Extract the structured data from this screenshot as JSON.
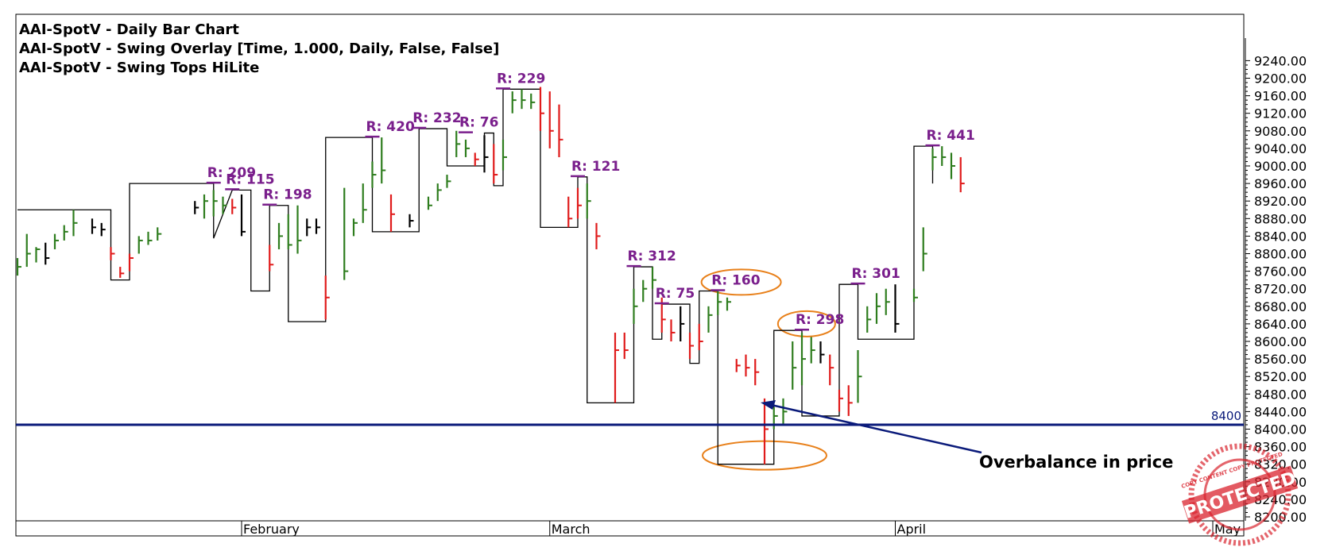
{
  "headers": {
    "line1": "AAI-SpotV - Daily Bar Chart",
    "line2": "AAI-SpotV - Swing Overlay [Time, 1.000, Daily, False, False]",
    "line3": "AAI-SpotV - Swing Tops HiLite"
  },
  "annotation": {
    "text": "Overbalance in price"
  },
  "watermark": {
    "text": "PROTECTED",
    "ring_text": "COPY CONTENT COPY PROTECTED"
  },
  "colors": {
    "up": "#2e7d1e",
    "down": "#e01b1b",
    "neutral": "#000000",
    "swing_label": "#7a1f8c",
    "level_line": "#0a1a7a",
    "ellipse": "#e8801a",
    "watermark": "#d9232d"
  },
  "chart_data": {
    "type": "bar",
    "title": "AAI-SpotV - Daily Bar Chart",
    "y_axis": {
      "min": 8200,
      "max": 9240,
      "step": 40,
      "ticks": [
        "8200.00",
        "8240.00",
        "8280.00",
        "8320.00",
        "8360.00",
        "8400.00",
        "8440.00",
        "8480.00",
        "8520.00",
        "8560.00",
        "8600.00",
        "8640.00",
        "8680.00",
        "8720.00",
        "8760.00",
        "8800.00",
        "8840.00",
        "8880.00",
        "8920.00",
        "8960.00",
        "9000.00",
        "9040.00",
        "9080.00",
        "9120.00",
        "9160.00",
        "9200.00",
        "9240.00"
      ]
    },
    "x_axis": {
      "months": [
        {
          "label": "February",
          "bar": 24
        },
        {
          "label": "March",
          "bar": 57
        },
        {
          "label": "April",
          "bar": 94
        },
        {
          "label": "May",
          "bar": 128
        }
      ],
      "bars_total": 130
    },
    "level_line": {
      "value": 8410,
      "label": "8400"
    },
    "swing_path": [
      [
        0,
        8900
      ],
      [
        10,
        8900
      ],
      [
        10,
        8740
      ],
      [
        12,
        8740
      ],
      [
        12,
        8960
      ],
      [
        21,
        8960
      ],
      [
        21,
        8835
      ],
      [
        23,
        8945
      ],
      [
        25,
        8945
      ],
      [
        25,
        8715
      ],
      [
        27,
        8715
      ],
      [
        27,
        8910
      ],
      [
        29,
        8910
      ],
      [
        29,
        8645
      ],
      [
        33,
        8645
      ],
      [
        33,
        9065
      ],
      [
        38,
        9065
      ],
      [
        38,
        8850
      ],
      [
        43,
        8850
      ],
      [
        43,
        9085
      ],
      [
        46,
        9085
      ],
      [
        46,
        9000
      ],
      [
        50,
        9000
      ],
      [
        50,
        9075
      ],
      [
        51,
        9075
      ],
      [
        51,
        8955
      ],
      [
        52,
        8955
      ],
      [
        52,
        9175
      ],
      [
        56,
        9175
      ],
      [
        56,
        8860
      ],
      [
        60,
        8860
      ],
      [
        60,
        8975
      ],
      [
        61,
        8975
      ],
      [
        61,
        8460
      ],
      [
        66,
        8460
      ],
      [
        66,
        8770
      ],
      [
        68,
        8770
      ],
      [
        68,
        8605
      ],
      [
        69,
        8605
      ],
      [
        69,
        8685
      ],
      [
        72,
        8685
      ],
      [
        72,
        8550
      ],
      [
        73,
        8550
      ],
      [
        73,
        8715
      ],
      [
        75,
        8715
      ],
      [
        75,
        8320
      ],
      [
        81,
        8320
      ],
      [
        81,
        8625
      ],
      [
        84,
        8625
      ],
      [
        84,
        8430
      ],
      [
        88,
        8430
      ],
      [
        88,
        8730
      ],
      [
        90,
        8730
      ],
      [
        90,
        8605
      ],
      [
        96,
        8605
      ],
      [
        96,
        9045
      ],
      [
        98,
        9045
      ],
      [
        98,
        8960
      ]
    ],
    "swing_labels": [
      {
        "x": 21,
        "y": 8960,
        "label": "R: 209"
      },
      {
        "x": 23,
        "y": 8945,
        "label": "R: 115"
      },
      {
        "x": 27,
        "y": 8910,
        "label": "R: 198"
      },
      {
        "x": 38,
        "y": 9065,
        "label": "R: 420"
      },
      {
        "x": 43,
        "y": 9085,
        "label": "R: 232"
      },
      {
        "x": 48,
        "y": 9075,
        "label": "R: 76"
      },
      {
        "x": 52,
        "y": 9175,
        "label": "R: 229"
      },
      {
        "x": 60,
        "y": 8975,
        "label": "R: 121"
      },
      {
        "x": 66,
        "y": 8770,
        "label": "R: 312"
      },
      {
        "x": 69,
        "y": 8685,
        "label": "R: 75"
      },
      {
        "x": 75,
        "y": 8715,
        "label": "R: 160"
      },
      {
        "x": 84,
        "y": 8625,
        "label": "R: 298"
      },
      {
        "x": 90,
        "y": 8730,
        "label": "R: 301"
      },
      {
        "x": 98,
        "y": 9045,
        "label": "R: 441"
      }
    ],
    "ellipses": [
      {
        "x": 77.5,
        "y": 8735
      },
      {
        "x": 84.5,
        "y": 8640
      },
      {
        "x": 80,
        "y": 8340
      }
    ],
    "bars": [
      [
        0,
        8790,
        8750,
        8770,
        "u"
      ],
      [
        1,
        8845,
        8770,
        8800,
        "u"
      ],
      [
        2,
        8815,
        8780,
        8810,
        "u"
      ],
      [
        3,
        8825,
        8775,
        8790,
        "n"
      ],
      [
        4,
        8845,
        8810,
        8830,
        "u"
      ],
      [
        5,
        8865,
        8830,
        8850,
        "u"
      ],
      [
        6,
        8900,
        8840,
        8870,
        "u"
      ],
      [
        8,
        8880,
        8845,
        8860,
        "n"
      ],
      [
        9,
        8870,
        8840,
        8855,
        "n"
      ],
      [
        10,
        8815,
        8785,
        8800,
        "d"
      ],
      [
        11,
        8770,
        8745,
        8755,
        "d"
      ],
      [
        12,
        8800,
        8760,
        8790,
        "d"
      ],
      [
        13,
        8840,
        8800,
        8830,
        "u"
      ],
      [
        14,
        8850,
        8820,
        8830,
        "u"
      ],
      [
        15,
        8860,
        8830,
        8845,
        "u"
      ],
      [
        19,
        8920,
        8890,
        8905,
        "n"
      ],
      [
        20,
        8935,
        8880,
        8920,
        "u"
      ],
      [
        21,
        8945,
        8885,
        8920,
        "u"
      ],
      [
        22,
        8930,
        8890,
        8910,
        "u"
      ],
      [
        23,
        8925,
        8890,
        8905,
        "d"
      ],
      [
        24,
        8935,
        8840,
        8850,
        "n"
      ],
      [
        27,
        8820,
        8760,
        8775,
        "d"
      ],
      [
        28,
        8870,
        8810,
        8840,
        "u"
      ],
      [
        29,
        8890,
        8810,
        8820,
        "u"
      ],
      [
        30,
        8910,
        8800,
        8830,
        "u"
      ],
      [
        31,
        8880,
        8840,
        8860,
        "n"
      ],
      [
        32,
        8880,
        8845,
        8860,
        "n"
      ],
      [
        33,
        8750,
        8650,
        8700,
        "d"
      ],
      [
        35,
        8950,
        8740,
        8760,
        "u"
      ],
      [
        36,
        8880,
        8840,
        8870,
        "u"
      ],
      [
        37,
        8960,
        8870,
        8900,
        "u"
      ],
      [
        38,
        9010,
        8950,
        8980,
        "u"
      ],
      [
        39,
        9065,
        8960,
        8990,
        "u"
      ],
      [
        40,
        8935,
        8850,
        8890,
        "d"
      ],
      [
        42,
        8890,
        8860,
        8875,
        "n"
      ],
      [
        44,
        8930,
        8900,
        8910,
        "u"
      ],
      [
        45,
        8960,
        8920,
        8945,
        "u"
      ],
      [
        46,
        8980,
        8950,
        8965,
        "u"
      ],
      [
        47,
        9080,
        9020,
        9050,
        "u"
      ],
      [
        48,
        9060,
        9020,
        9040,
        "u"
      ],
      [
        49,
        9030,
        9000,
        9015,
        "d"
      ],
      [
        50,
        9070,
        8985,
        9020,
        "n"
      ],
      [
        51,
        9050,
        8960,
        8980,
        "d"
      ],
      [
        52,
        9060,
        8990,
        9020,
        "u"
      ],
      [
        53,
        9170,
        9120,
        9150,
        "u"
      ],
      [
        54,
        9175,
        9130,
        9150,
        "u"
      ],
      [
        55,
        9165,
        9130,
        9145,
        "u"
      ],
      [
        56,
        9180,
        9080,
        9120,
        "d"
      ],
      [
        57,
        9170,
        9040,
        9080,
        "d"
      ],
      [
        58,
        9140,
        9020,
        9060,
        "d"
      ],
      [
        59,
        8930,
        8860,
        8880,
        "d"
      ],
      [
        60,
        8950,
        8880,
        8910,
        "d"
      ],
      [
        61,
        8960,
        8880,
        8920,
        "u"
      ],
      [
        62,
        8870,
        8810,
        8840,
        "d"
      ],
      [
        64,
        8620,
        8460,
        8580,
        "d"
      ],
      [
        65,
        8620,
        8560,
        8580,
        "d"
      ],
      [
        66,
        8720,
        8640,
        8680,
        "u"
      ],
      [
        67,
        8740,
        8690,
        8720,
        "u"
      ],
      [
        68,
        8770,
        8720,
        8740,
        "u"
      ],
      [
        69,
        8700,
        8620,
        8650,
        "d"
      ],
      [
        70,
        8650,
        8600,
        8620,
        "d"
      ],
      [
        71,
        8680,
        8600,
        8640,
        "n"
      ],
      [
        72,
        8620,
        8560,
        8590,
        "d"
      ],
      [
        73,
        8640,
        8580,
        8600,
        "d"
      ],
      [
        74,
        8680,
        8620,
        8660,
        "u"
      ],
      [
        75,
        8715,
        8660,
        8690,
        "u"
      ],
      [
        76,
        8700,
        8670,
        8690,
        "u"
      ],
      [
        77,
        8560,
        8530,
        8545,
        "d"
      ],
      [
        78,
        8570,
        8520,
        8540,
        "d"
      ],
      [
        79,
        8560,
        8500,
        8530,
        "d"
      ],
      [
        80,
        8470,
        8320,
        8400,
        "d"
      ],
      [
        81,
        8450,
        8400,
        8430,
        "u"
      ],
      [
        82,
        8470,
        8410,
        8440,
        "u"
      ],
      [
        83,
        8600,
        8490,
        8540,
        "u"
      ],
      [
        84,
        8620,
        8500,
        8560,
        "u"
      ],
      [
        85,
        8610,
        8550,
        8580,
        "u"
      ],
      [
        86,
        8600,
        8550,
        8570,
        "n"
      ],
      [
        87,
        8570,
        8500,
        8540,
        "d"
      ],
      [
        88,
        8490,
        8440,
        8470,
        "d"
      ],
      [
        89,
        8500,
        8430,
        8460,
        "d"
      ],
      [
        90,
        8580,
        8460,
        8520,
        "u"
      ],
      [
        91,
        8680,
        8620,
        8650,
        "u"
      ],
      [
        92,
        8710,
        8640,
        8680,
        "u"
      ],
      [
        93,
        8720,
        8660,
        8690,
        "u"
      ],
      [
        94,
        8730,
        8620,
        8640,
        "n"
      ],
      [
        96,
        8720,
        8690,
        8700,
        "u"
      ],
      [
        97,
        8860,
        8760,
        8800,
        "u"
      ],
      [
        98,
        9040,
        8990,
        9020,
        "u"
      ],
      [
        99,
        9045,
        9000,
        9020,
        "u"
      ],
      [
        100,
        9030,
        8970,
        9000,
        "u"
      ],
      [
        101,
        9020,
        8940,
        8960,
        "d"
      ]
    ]
  }
}
